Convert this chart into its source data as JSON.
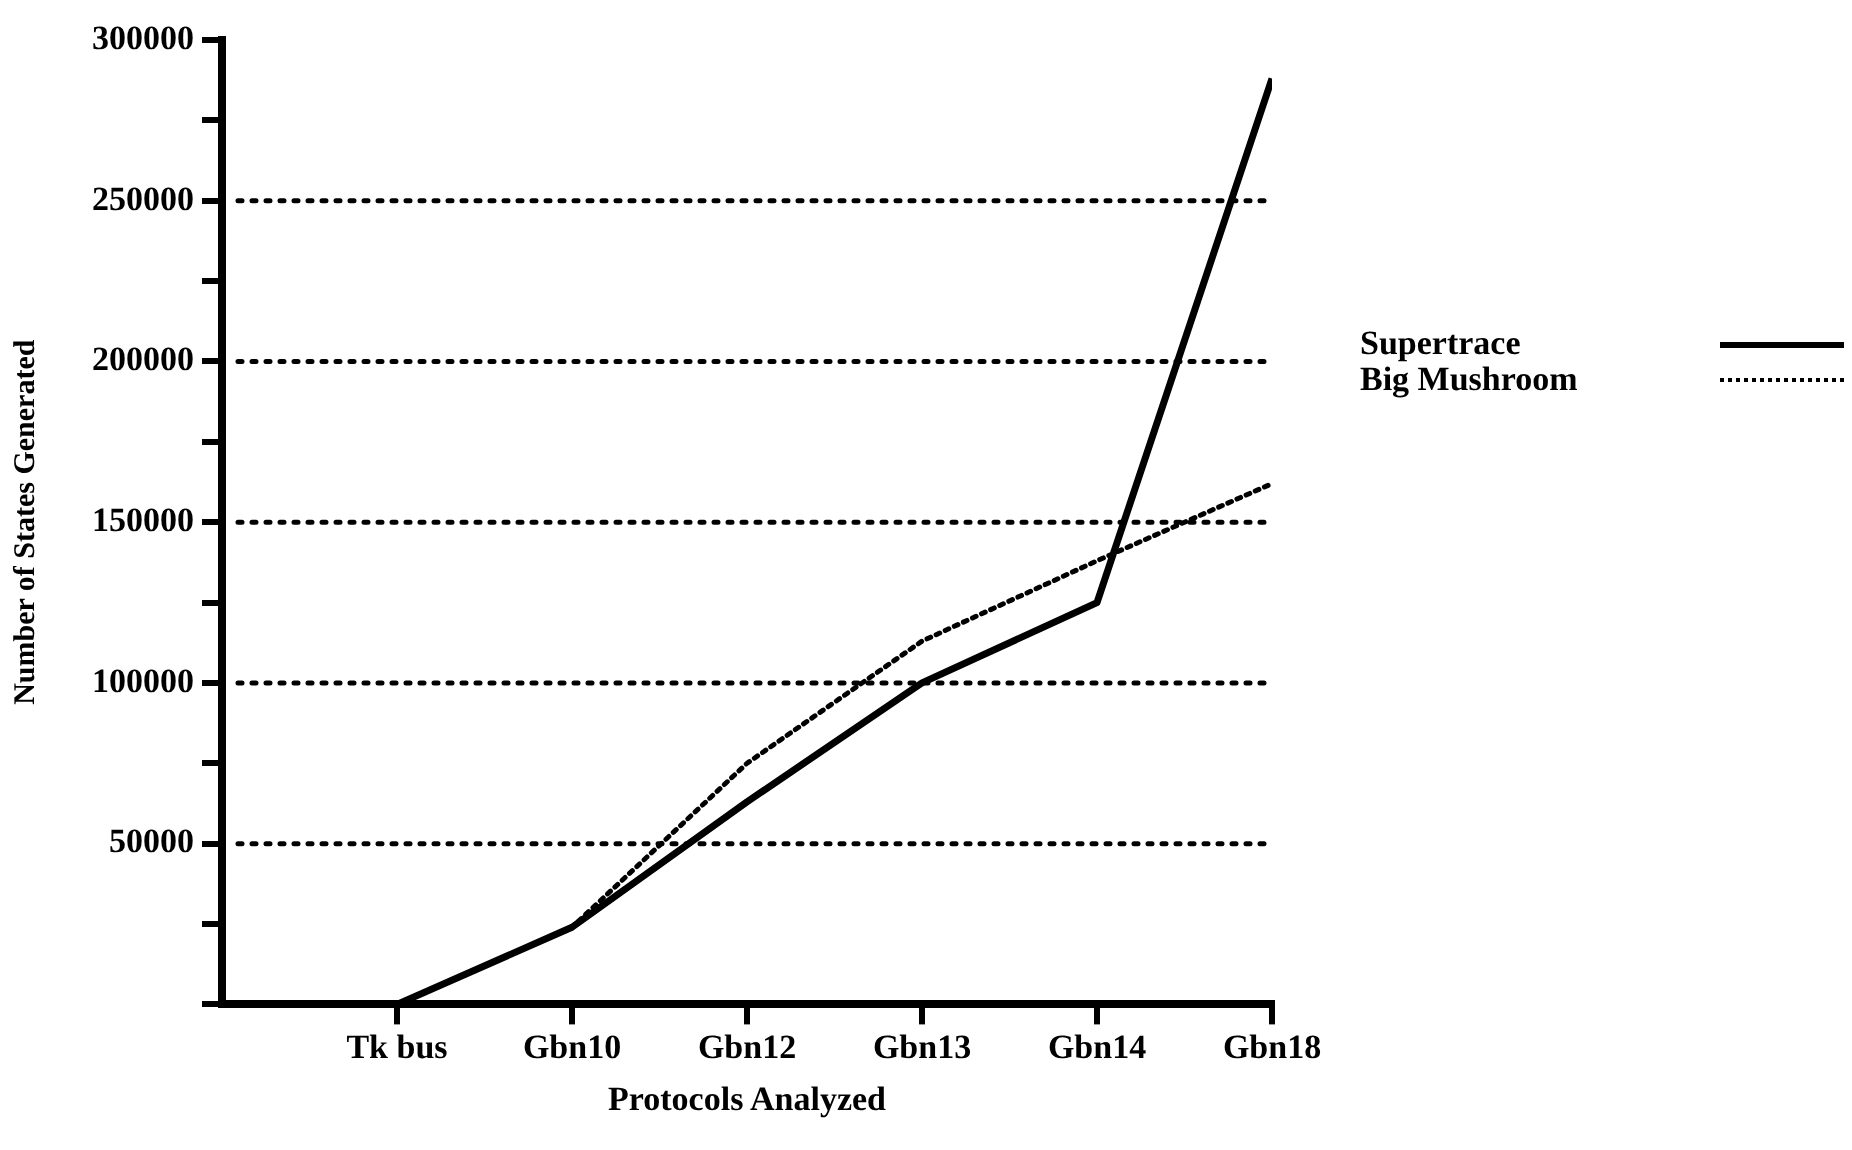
{
  "chart_data": {
    "type": "line",
    "xlabel": "Protocols Analyzed",
    "ylabel": "Number of States Generated",
    "categories": [
      "Tk bus",
      "Gbn10",
      "Gbn12",
      "Gbn13",
      "Gbn14",
      "Gbn18"
    ],
    "series": [
      {
        "name": "Supertrace",
        "color": "#000000",
        "line_style": "solid",
        "values": [
          0,
          24000,
          63000,
          100000,
          125000,
          288000
        ]
      },
      {
        "name": "Big Mushroom",
        "color": "#000000",
        "line_style": "dotted",
        "values": [
          0,
          24000,
          75000,
          113000,
          138000,
          162000
        ]
      }
    ],
    "ylim": [
      0,
      300000
    ],
    "yticks": [
      {
        "value": 0,
        "label": null
      },
      {
        "value": 25000,
        "label": null
      },
      50000,
      {
        "value": 75000,
        "label": null
      },
      100000,
      {
        "value": 125000,
        "label": null
      },
      150000,
      {
        "value": 175000,
        "label": null
      },
      200000,
      {
        "value": 225000,
        "label": null
      },
      250000,
      {
        "value": 275000,
        "label": null
      },
      300000
    ],
    "grid": "y",
    "legend": "right",
    "marker": "none"
  }
}
